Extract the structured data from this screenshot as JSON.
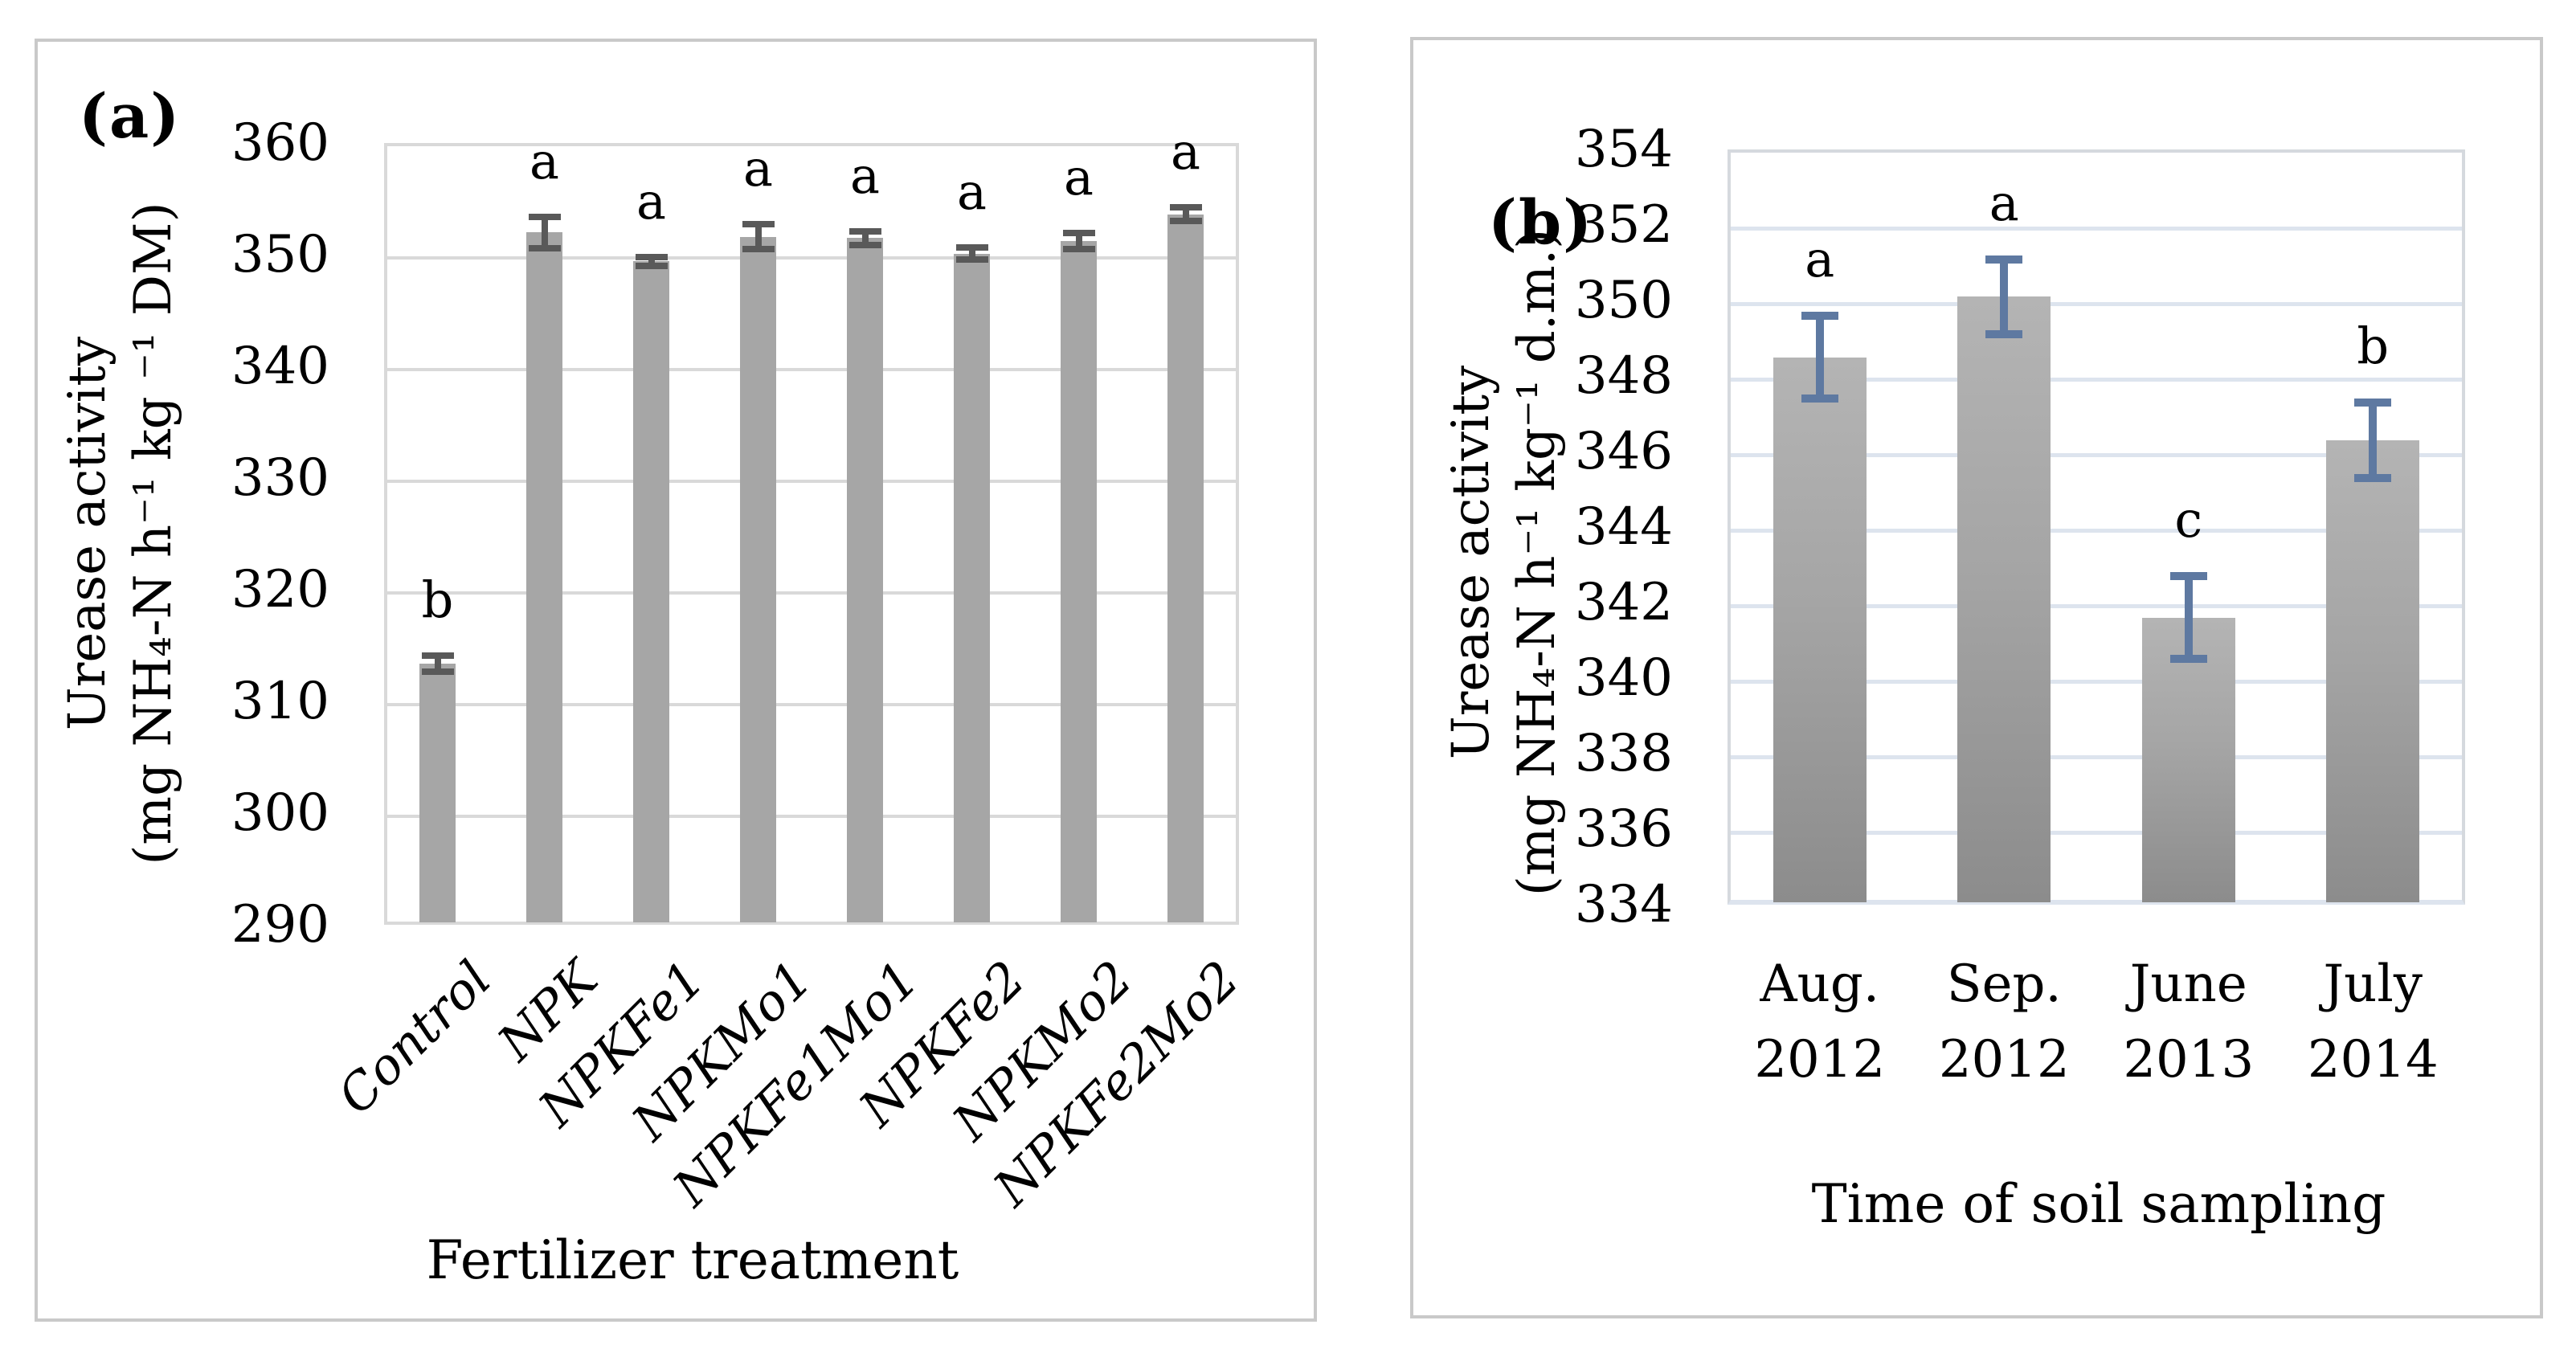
{
  "figure": {
    "description": "Two-panel bar figure of soil urease activity",
    "background": "#ffffff"
  },
  "chart_data": [
    {
      "id": "a",
      "type": "bar",
      "panel_label": "(a)",
      "ylabel": "Urease activity\n(mg NH₄-N h⁻¹ kg ⁻¹ DM)",
      "xlabel": "Fertilizer treatment",
      "ylim": [
        290,
        360
      ],
      "ytick_step": 10,
      "yticks": [
        360,
        350,
        340,
        330,
        320,
        310,
        300,
        290
      ],
      "categories": [
        "Control",
        "NPK",
        "NPKFe1",
        "NPKMo1",
        "NPKFe1Mo1",
        "NPKFe2",
        "NPKMo2",
        "NPKFe2Mo2"
      ],
      "values": [
        313.4,
        352.0,
        349.4,
        351.6,
        351.5,
        350.1,
        351.2,
        353.6
      ],
      "errors": [
        1.0,
        1.7,
        0.7,
        1.4,
        0.9,
        0.8,
        1.0,
        0.9
      ],
      "sig_letters": [
        "b",
        "a",
        "a",
        "a",
        "a",
        "a",
        "a",
        "a"
      ],
      "grid": true,
      "legend": "none",
      "bar_color": "#a6a6a6",
      "error_color": "#595959",
      "gridline_color": "#d9d9d9"
    },
    {
      "id": "b",
      "type": "bar",
      "panel_label": "(b)",
      "ylabel": "Urease activity\n(mg NH₄-N h⁻¹ kg⁻¹ d.m.)",
      "xlabel": "Time of soil sampling",
      "ylim": [
        334,
        354
      ],
      "ytick_step": 2,
      "yticks": [
        354,
        352,
        350,
        348,
        346,
        344,
        342,
        340,
        338,
        336,
        334
      ],
      "categories": [
        "Aug.\n2012",
        "Sep.\n2012",
        "June\n2013",
        "July\n2014"
      ],
      "values": [
        348.5,
        350.1,
        341.6,
        346.3
      ],
      "errors": [
        1.2,
        1.1,
        1.2,
        1.1
      ],
      "sig_letters": [
        "a",
        "a",
        "c",
        "b"
      ],
      "grid": true,
      "legend": "none",
      "bar_color_top": "#b4b4b4",
      "bar_color_bottom": "#8c8c8c",
      "error_color": "#5e79a1",
      "gridline_color": "#dde4ee"
    }
  ]
}
